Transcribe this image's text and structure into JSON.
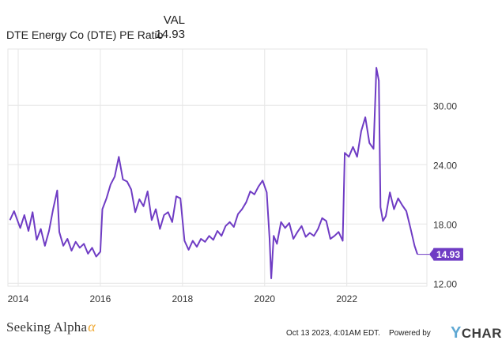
{
  "legend": {
    "header": "VAL",
    "series_name": "DTE Energy Co (DTE) PE Ratio",
    "series_value": "14.93"
  },
  "colors": {
    "line": "#6f3cc4",
    "badge": "#6f3cc4",
    "grid": "#e6e6e6",
    "axis_text": "#333333"
  },
  "chart_data": {
    "type": "line",
    "series": [
      {
        "name": "DTE Energy Co (DTE) PE Ratio",
        "points": [
          [
            2013.8,
            18.4
          ],
          [
            2013.9,
            19.3
          ],
          [
            2014.05,
            17.6
          ],
          [
            2014.15,
            18.9
          ],
          [
            2014.25,
            17.3
          ],
          [
            2014.35,
            19.2
          ],
          [
            2014.45,
            16.4
          ],
          [
            2014.55,
            17.5
          ],
          [
            2014.65,
            15.8
          ],
          [
            2014.75,
            17.3
          ],
          [
            2014.85,
            19.5
          ],
          [
            2014.95,
            21.4
          ],
          [
            2015.0,
            17.2
          ],
          [
            2015.1,
            15.8
          ],
          [
            2015.2,
            16.5
          ],
          [
            2015.3,
            15.3
          ],
          [
            2015.4,
            16.2
          ],
          [
            2015.5,
            15.6
          ],
          [
            2015.6,
            16.0
          ],
          [
            2015.7,
            15.0
          ],
          [
            2015.8,
            15.6
          ],
          [
            2015.9,
            14.7
          ],
          [
            2016.0,
            15.2
          ],
          [
            2016.05,
            19.5
          ],
          [
            2016.15,
            20.6
          ],
          [
            2016.25,
            22.0
          ],
          [
            2016.35,
            22.8
          ],
          [
            2016.45,
            24.8
          ],
          [
            2016.55,
            22.5
          ],
          [
            2016.65,
            22.3
          ],
          [
            2016.75,
            21.5
          ],
          [
            2016.85,
            19.2
          ],
          [
            2016.95,
            20.5
          ],
          [
            2017.05,
            19.8
          ],
          [
            2017.15,
            21.3
          ],
          [
            2017.25,
            18.4
          ],
          [
            2017.35,
            19.5
          ],
          [
            2017.45,
            17.5
          ],
          [
            2017.55,
            18.9
          ],
          [
            2017.65,
            19.2
          ],
          [
            2017.75,
            18.2
          ],
          [
            2017.85,
            20.8
          ],
          [
            2017.95,
            20.6
          ],
          [
            2018.05,
            16.3
          ],
          [
            2018.15,
            15.4
          ],
          [
            2018.25,
            16.3
          ],
          [
            2018.35,
            15.7
          ],
          [
            2018.45,
            16.5
          ],
          [
            2018.55,
            16.2
          ],
          [
            2018.65,
            16.8
          ],
          [
            2018.75,
            16.4
          ],
          [
            2018.85,
            17.3
          ],
          [
            2018.95,
            16.8
          ],
          [
            2019.05,
            17.8
          ],
          [
            2019.15,
            18.2
          ],
          [
            2019.25,
            17.7
          ],
          [
            2019.35,
            19.0
          ],
          [
            2019.45,
            19.5
          ],
          [
            2019.55,
            20.2
          ],
          [
            2019.65,
            21.3
          ],
          [
            2019.75,
            21.0
          ],
          [
            2019.85,
            21.8
          ],
          [
            2019.95,
            22.4
          ],
          [
            2020.05,
            21.2
          ],
          [
            2020.12,
            16.5
          ],
          [
            2020.16,
            12.5
          ],
          [
            2020.22,
            16.8
          ],
          [
            2020.3,
            16.0
          ],
          [
            2020.4,
            18.2
          ],
          [
            2020.5,
            17.6
          ],
          [
            2020.6,
            18.1
          ],
          [
            2020.7,
            16.5
          ],
          [
            2020.8,
            17.2
          ],
          [
            2020.9,
            17.8
          ],
          [
            2021.0,
            16.7
          ],
          [
            2021.1,
            17.1
          ],
          [
            2021.2,
            16.8
          ],
          [
            2021.3,
            17.5
          ],
          [
            2021.4,
            18.6
          ],
          [
            2021.5,
            18.3
          ],
          [
            2021.6,
            16.5
          ],
          [
            2021.7,
            16.8
          ],
          [
            2021.8,
            17.2
          ],
          [
            2021.9,
            16.3
          ],
          [
            2021.95,
            25.2
          ],
          [
            2022.05,
            24.8
          ],
          [
            2022.15,
            25.8
          ],
          [
            2022.25,
            24.8
          ],
          [
            2022.35,
            27.4
          ],
          [
            2022.45,
            28.8
          ],
          [
            2022.55,
            26.2
          ],
          [
            2022.65,
            25.6
          ],
          [
            2022.72,
            33.8
          ],
          [
            2022.78,
            32.5
          ],
          [
            2022.82,
            19.7
          ],
          [
            2022.88,
            18.3
          ],
          [
            2022.95,
            18.8
          ],
          [
            2023.05,
            21.2
          ],
          [
            2023.15,
            19.5
          ],
          [
            2023.25,
            20.6
          ],
          [
            2023.35,
            19.9
          ],
          [
            2023.45,
            19.3
          ],
          [
            2023.55,
            17.6
          ],
          [
            2023.65,
            15.8
          ],
          [
            2023.72,
            14.93
          ]
        ]
      }
    ],
    "x_ticks": [
      "2014",
      "2016",
      "2018",
      "2020",
      "2022"
    ],
    "x_tick_values": [
      2014,
      2016,
      2018,
      2020,
      2022
    ],
    "y_ticks": [
      "12.00",
      "18.00",
      "24.00",
      "30.00"
    ],
    "y_tick_values": [
      12,
      18,
      24,
      30
    ],
    "xlim": [
      2013.75,
      2023.95
    ],
    "ylim": [
      11.7,
      35.7
    ],
    "grid": true,
    "last_value_label": "14.93"
  },
  "footer": {
    "logo_text": "Seeking Alpha",
    "logo_mark": "α",
    "date": "Oct 13 2023, 4:01AM EDT.",
    "powered_by": "Powered by",
    "brand_y": "Y",
    "brand_rest": "CHARTS"
  }
}
